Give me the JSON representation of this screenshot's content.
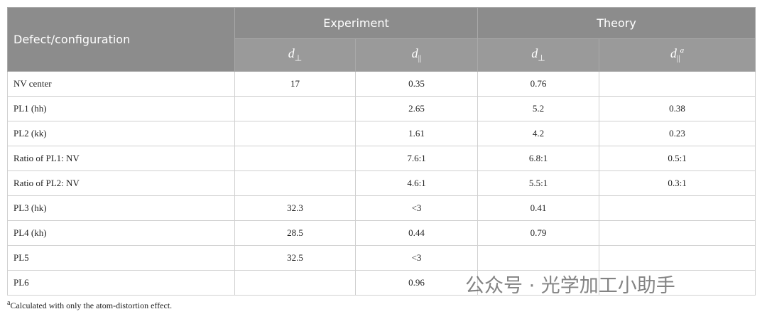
{
  "table": {
    "header": {
      "group_row": [
        "Defect/configuration",
        "Experiment",
        "Theory"
      ],
      "sub_row": [
        {
          "symbol": "d",
          "subscript": "⊥"
        },
        {
          "symbol": "d",
          "subscript": "||"
        },
        {
          "symbol": "d",
          "subscript": "⊥"
        },
        {
          "symbol": "d",
          "subscript": "||",
          "superscript": "a"
        }
      ]
    },
    "rows": [
      [
        "NV center",
        "17",
        "0.35",
        "0.76",
        null
      ],
      [
        "PL1 (hh)",
        null,
        "2.65",
        "5.2",
        "0.38"
      ],
      [
        "PL2 (kk)",
        null,
        "1.61",
        "4.2",
        "0.23"
      ],
      [
        "Ratio of PL1: NV",
        null,
        "7.6:1",
        "6.8:1",
        "0.5:1"
      ],
      [
        "Ratio of PL2: NV",
        null,
        "4.6:1",
        "5.5:1",
        "0.3:1"
      ],
      [
        "PL3 (hk)",
        "32.3",
        "<3",
        "0.41",
        null
      ],
      [
        "PL4 (kh)",
        "28.5",
        "0.44",
        "0.79",
        null
      ],
      [
        "PL5",
        "32.5",
        "<3",
        null,
        null
      ],
      [
        "PL6",
        null,
        "0.96",
        null,
        null
      ]
    ],
    "footnote": {
      "marker": "a",
      "text": "Calculated with only the atom-distortion effect."
    }
  },
  "watermark": "公众号 · 光学加工小助手"
}
